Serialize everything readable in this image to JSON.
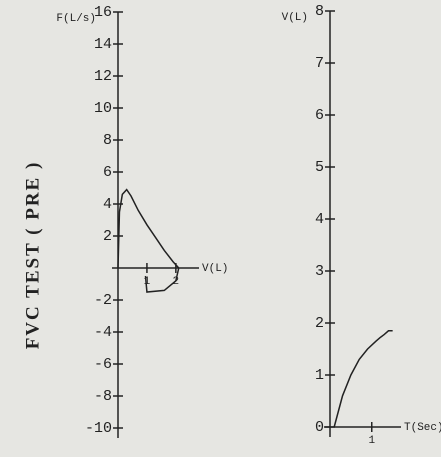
{
  "page_title": "FVC TEST ( PRE )",
  "chart_data": [
    {
      "type": "line",
      "ylabel": "F(L/s)",
      "xlabel": "V(L)",
      "xlim": [
        0,
        2.8
      ],
      "ylim": [
        -10,
        16
      ],
      "xticks": [
        1,
        2
      ],
      "yticks": [
        16,
        14,
        12,
        10,
        8,
        6,
        4,
        2,
        -2,
        -4,
        -6,
        -8,
        -10
      ],
      "series": [
        {
          "color": "#222222",
          "x": [
            0,
            0.05,
            0.15,
            0.3,
            0.45,
            0.7,
            1.0,
            1.3,
            1.6,
            1.9,
            2.1,
            2.0,
            1.6,
            1.0,
            0.95
          ],
          "values": [
            0,
            3.5,
            4.6,
            4.9,
            4.5,
            3.6,
            2.7,
            1.9,
            1.1,
            0.4,
            0,
            -0.8,
            -1.4,
            -1.5,
            -0.5
          ]
        }
      ]
    },
    {
      "type": "line",
      "ylabel": "V(L)",
      "xlabel": "T(Sec)",
      "xlim": [
        0,
        1.7
      ],
      "ylim": [
        0,
        8
      ],
      "xticks": [
        1
      ],
      "yticks": [
        0,
        1,
        2,
        3,
        4,
        5,
        6,
        7,
        8
      ],
      "series": [
        {
          "color": "#222222",
          "x": [
            0.1,
            0.3,
            0.5,
            0.7,
            0.9,
            1.1,
            1.2,
            1.3,
            1.4,
            1.5
          ],
          "values": [
            0,
            0.6,
            1.0,
            1.3,
            1.5,
            1.65,
            1.72,
            1.78,
            1.85,
            1.85
          ]
        }
      ]
    }
  ]
}
